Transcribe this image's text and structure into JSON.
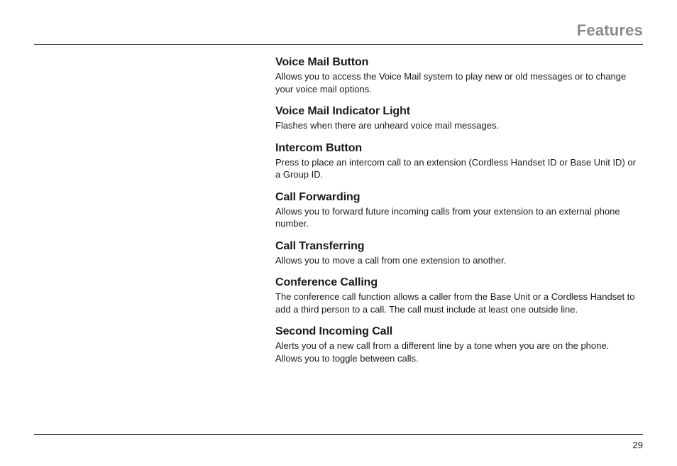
{
  "page": {
    "section_title": "Features",
    "page_number": "29",
    "colors": {
      "background": "#ffffff",
      "text": "#1a1a1a",
      "title_gray": "#8a8a8a",
      "rule": "#333333"
    },
    "typography": {
      "title_fontsize": 22,
      "heading_fontsize": 16,
      "body_fontsize": 13,
      "font_family_sans": "Arial, Helvetica, sans-serif"
    },
    "layout": {
      "left_margin": 340,
      "page_padding_x": 48
    }
  },
  "features": [
    {
      "heading": "Voice Mail Button",
      "body": "Allows you to access the Voice Mail system to play new or old messages or to change your voice mail options."
    },
    {
      "heading": "Voice Mail Indicator Light",
      "body": "Flashes when there are unheard voice mail messages."
    },
    {
      "heading": "Intercom Button",
      "body": "Press to place an intercom call to an extension (Cordless Handset ID or Base Unit ID) or a Group ID."
    },
    {
      "heading": "Call Forwarding",
      "body": "Allows you to forward future incoming calls from your extension to an external phone number."
    },
    {
      "heading": "Call Transferring",
      "body": "Allows you to move a call from one extension to another."
    },
    {
      "heading": "Conference Calling",
      "body": "The conference call function allows a caller from the Base Unit or a Cordless Handset to add a third person to a call. The call must include at least one outside line."
    },
    {
      "heading": "Second Incoming Call",
      "body": "Alerts you of a new call from a different line by a tone when you are on the phone. Allows you to toggle between calls."
    }
  ]
}
